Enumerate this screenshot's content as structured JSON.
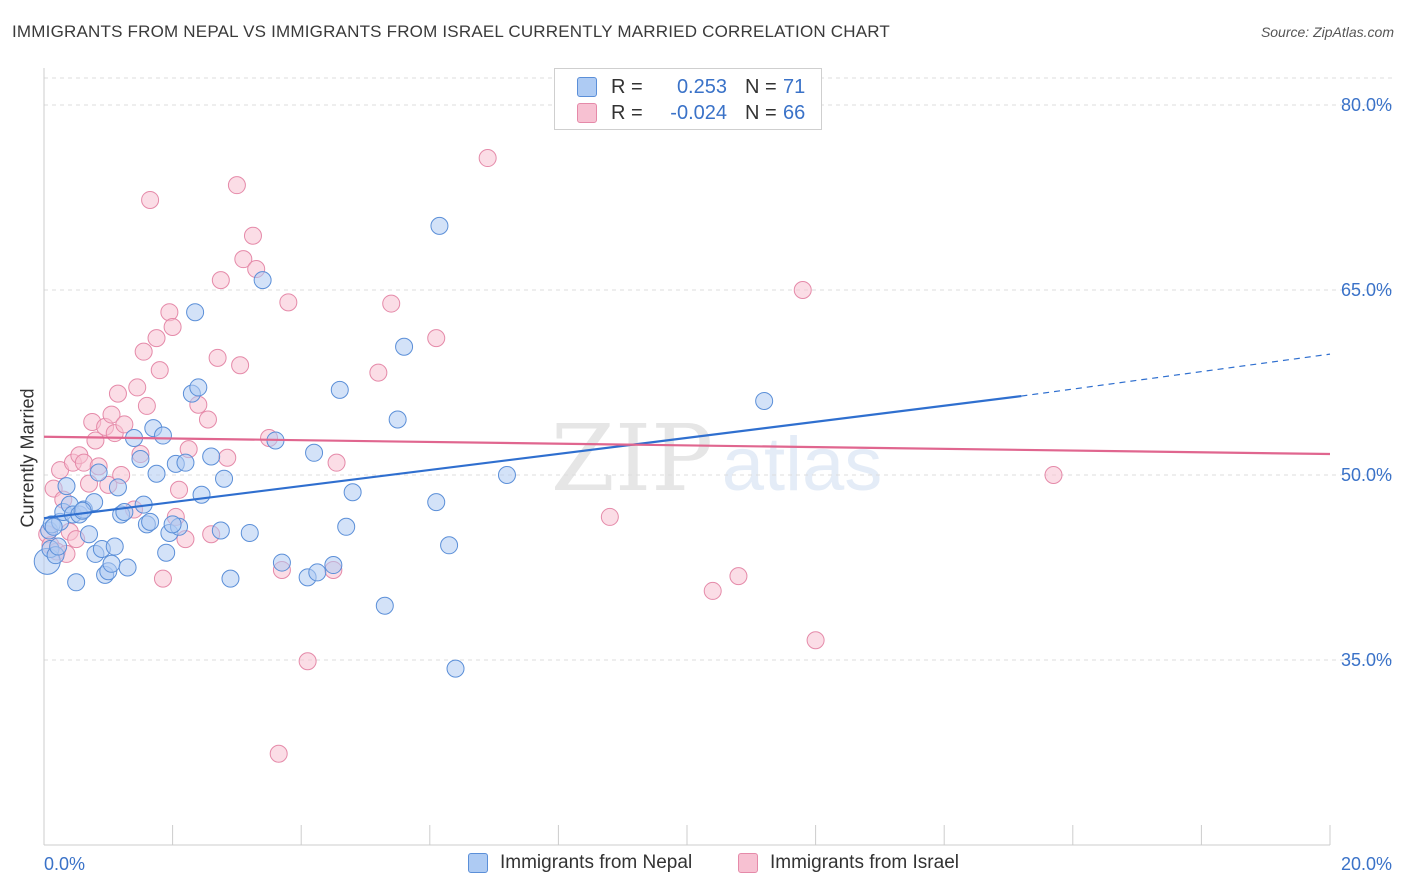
{
  "title": "IMMIGRANTS FROM NEPAL VS IMMIGRANTS FROM ISRAEL CURRENTLY MARRIED CORRELATION CHART",
  "source": "Source: ZipAtlas.com",
  "watermark": {
    "zip": "ZIP",
    "atlas": "atlas"
  },
  "legend": {
    "nepal": {
      "r_label": "R =",
      "r_value": "0.253",
      "n_label": "N =",
      "n_value": "71"
    },
    "israel": {
      "r_label": "R =",
      "r_value": "-0.024",
      "n_label": "N =",
      "n_value": "66"
    }
  },
  "colors": {
    "nepal_fill": "#aecbf3",
    "nepal_stroke": "#5b8fd8",
    "nepal_line": "#2f6fcf",
    "israel_fill": "#f7c1d2",
    "israel_stroke": "#e58aa9",
    "israel_line": "#e0668f",
    "tick_text": "#3a72c8",
    "grid": "#dddddd"
  },
  "chart_data": {
    "type": "scatter",
    "title": "IMMIGRANTS FROM NEPAL VS IMMIGRANTS FROM ISRAEL CURRENTLY MARRIED CORRELATION CHART",
    "xlabel": "",
    "ylabel": "Currently Married",
    "xlim": [
      0,
      20
    ],
    "ylim": [
      20,
      83
    ],
    "x_tick_labels": {
      "min": "0.0%",
      "max": "20.0%"
    },
    "y_ticks": [
      {
        "value": 80,
        "label": "80.0%"
      },
      {
        "value": 65,
        "label": "65.0%"
      },
      {
        "value": 50,
        "label": "50.0%"
      },
      {
        "value": 35,
        "label": "35.0%"
      }
    ],
    "grid": true,
    "legend_position": "top-center",
    "series": [
      {
        "name": "Immigrants from Nepal",
        "r": 0.253,
        "n": 71,
        "trend": {
          "x0": 0,
          "y0": 46.5,
          "x1": 15.2,
          "y1": 56.4,
          "dashed_to_x": 20,
          "dashed_to_y": 59.8
        },
        "points": [
          [
            0.05,
            43.0
          ],
          [
            0.08,
            45.5
          ],
          [
            0.1,
            44.0
          ],
          [
            0.12,
            46.0
          ],
          [
            0.18,
            43.5
          ],
          [
            0.25,
            46.2
          ],
          [
            0.3,
            47.0
          ],
          [
            0.35,
            49.1
          ],
          [
            0.4,
            47.6
          ],
          [
            0.45,
            46.8
          ],
          [
            0.5,
            41.3
          ],
          [
            0.55,
            46.8
          ],
          [
            0.62,
            47.2
          ],
          [
            0.7,
            45.2
          ],
          [
            0.78,
            47.8
          ],
          [
            0.8,
            43.6
          ],
          [
            0.85,
            50.2
          ],
          [
            0.9,
            44.0
          ],
          [
            0.95,
            41.9
          ],
          [
            1.0,
            42.2
          ],
          [
            1.05,
            42.8
          ],
          [
            1.15,
            49.0
          ],
          [
            1.2,
            46.8
          ],
          [
            1.25,
            47.0
          ],
          [
            1.3,
            42.5
          ],
          [
            1.4,
            53.0
          ],
          [
            1.5,
            51.3
          ],
          [
            1.55,
            47.6
          ],
          [
            1.6,
            46.0
          ],
          [
            1.65,
            46.2
          ],
          [
            1.7,
            53.8
          ],
          [
            1.75,
            50.1
          ],
          [
            1.85,
            53.2
          ],
          [
            1.9,
            43.7
          ],
          [
            1.95,
            45.3
          ],
          [
            2.05,
            50.9
          ],
          [
            2.1,
            45.8
          ],
          [
            2.2,
            51.0
          ],
          [
            2.3,
            56.6
          ],
          [
            2.35,
            63.2
          ],
          [
            2.4,
            57.1
          ],
          [
            2.45,
            48.4
          ],
          [
            2.6,
            51.5
          ],
          [
            2.75,
            45.5
          ],
          [
            2.8,
            49.7
          ],
          [
            2.9,
            41.6
          ],
          [
            3.2,
            45.3
          ],
          [
            3.4,
            65.8
          ],
          [
            3.6,
            52.8
          ],
          [
            3.7,
            42.9
          ],
          [
            4.1,
            41.7
          ],
          [
            4.2,
            51.8
          ],
          [
            4.5,
            42.7
          ],
          [
            4.6,
            56.9
          ],
          [
            4.7,
            45.8
          ],
          [
            4.8,
            48.6
          ],
          [
            5.3,
            39.4
          ],
          [
            5.5,
            54.5
          ],
          [
            5.6,
            60.4
          ],
          [
            6.1,
            47.8
          ],
          [
            6.15,
            70.2
          ],
          [
            6.3,
            44.3
          ],
          [
            6.4,
            34.3
          ],
          [
            7.2,
            50.0
          ],
          [
            11.2,
            56.0
          ],
          [
            0.15,
            45.8
          ],
          [
            0.22,
            44.2
          ],
          [
            0.6,
            47.1
          ],
          [
            1.1,
            44.2
          ],
          [
            2.0,
            46.0
          ],
          [
            4.25,
            42.1
          ]
        ]
      },
      {
        "name": "Immigrants from Israel",
        "r": -0.024,
        "n": 66,
        "trend": {
          "x0": 0,
          "y0": 53.1,
          "x1": 20,
          "y1": 51.7
        },
        "points": [
          [
            0.05,
            45.2
          ],
          [
            0.1,
            44.3
          ],
          [
            0.15,
            48.9
          ],
          [
            0.2,
            43.8
          ],
          [
            0.25,
            50.4
          ],
          [
            0.3,
            48.0
          ],
          [
            0.35,
            43.6
          ],
          [
            0.4,
            45.4
          ],
          [
            0.45,
            51.0
          ],
          [
            0.5,
            44.8
          ],
          [
            0.55,
            51.6
          ],
          [
            0.62,
            51.0
          ],
          [
            0.7,
            49.3
          ],
          [
            0.75,
            54.3
          ],
          [
            0.8,
            52.8
          ],
          [
            0.85,
            50.7
          ],
          [
            0.95,
            53.9
          ],
          [
            1.0,
            49.2
          ],
          [
            1.05,
            54.9
          ],
          [
            1.1,
            53.4
          ],
          [
            1.15,
            56.6
          ],
          [
            1.2,
            50.0
          ],
          [
            1.25,
            54.1
          ],
          [
            1.4,
            47.2
          ],
          [
            1.45,
            57.1
          ],
          [
            1.5,
            51.7
          ],
          [
            1.55,
            60.0
          ],
          [
            1.6,
            55.6
          ],
          [
            1.65,
            72.3
          ],
          [
            1.75,
            61.1
          ],
          [
            1.8,
            58.5
          ],
          [
            1.85,
            41.6
          ],
          [
            1.95,
            63.2
          ],
          [
            2.0,
            62.0
          ],
          [
            2.05,
            46.6
          ],
          [
            2.1,
            48.8
          ],
          [
            2.2,
            44.8
          ],
          [
            2.25,
            52.1
          ],
          [
            2.4,
            55.7
          ],
          [
            2.55,
            54.5
          ],
          [
            2.6,
            45.2
          ],
          [
            2.7,
            59.5
          ],
          [
            2.75,
            65.8
          ],
          [
            2.85,
            51.4
          ],
          [
            3.0,
            73.5
          ],
          [
            3.05,
            58.9
          ],
          [
            3.1,
            67.5
          ],
          [
            3.25,
            69.4
          ],
          [
            3.3,
            66.7
          ],
          [
            3.5,
            53.0
          ],
          [
            3.7,
            42.3
          ],
          [
            3.8,
            64.0
          ],
          [
            4.1,
            34.9
          ],
          [
            4.5,
            42.3
          ],
          [
            4.55,
            51.0
          ],
          [
            5.2,
            58.3
          ],
          [
            5.4,
            63.9
          ],
          [
            6.1,
            61.1
          ],
          [
            6.9,
            75.7
          ],
          [
            8.8,
            46.6
          ],
          [
            10.4,
            40.6
          ],
          [
            10.8,
            41.8
          ],
          [
            11.8,
            65.0
          ],
          [
            12.0,
            36.6
          ],
          [
            15.7,
            50.0
          ],
          [
            3.65,
            27.4
          ]
        ]
      }
    ]
  },
  "bottom_legend": {
    "nepal_label": "Immigrants from Nepal",
    "israel_label": "Immigrants from Israel"
  }
}
